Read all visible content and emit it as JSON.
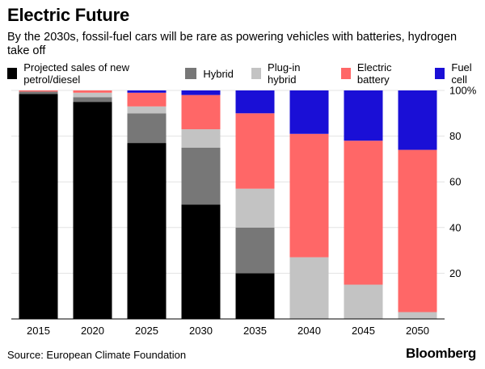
{
  "header": {
    "title": "Electric Future",
    "subtitle": "By the 2030s, fossil-fuel cars will be rare as powering vehicles with batteries, hydrogen take off"
  },
  "footer": {
    "source": "Source: European Climate Foundation",
    "brand": "Bloomberg"
  },
  "chart_data": {
    "type": "bar",
    "stacked": true,
    "categories": [
      "2015",
      "2020",
      "2025",
      "2030",
      "2035",
      "2040",
      "2045",
      "2050"
    ],
    "series": [
      {
        "name": "Projected sales of new petrol/diesel",
        "color": "#000000",
        "values": [
          98.5,
          95,
          77,
          50,
          20,
          0,
          0,
          0
        ]
      },
      {
        "name": "Hybrid",
        "color": "#777777",
        "values": [
          1,
          2,
          13,
          25,
          20,
          0,
          0,
          0
        ]
      },
      {
        "name": "Plug-in hybrid",
        "color": "#c3c3c3",
        "values": [
          0,
          2,
          3,
          8,
          17,
          27,
          15,
          3
        ]
      },
      {
        "name": "Electric battery",
        "color": "#ff6767",
        "values": [
          0.5,
          1,
          6,
          15,
          33,
          54,
          63,
          71
        ]
      },
      {
        "name": "Fuel cell",
        "color": "#1a0fd6",
        "values": [
          0,
          0,
          1,
          2,
          10,
          19,
          22,
          26
        ]
      }
    ],
    "ylim": [
      0,
      100
    ],
    "yticks": [
      "20",
      "40",
      "60",
      "80",
      "100%"
    ],
    "ytick_values": [
      20,
      40,
      60,
      80,
      100
    ],
    "grid": true,
    "legend_position": "top"
  }
}
